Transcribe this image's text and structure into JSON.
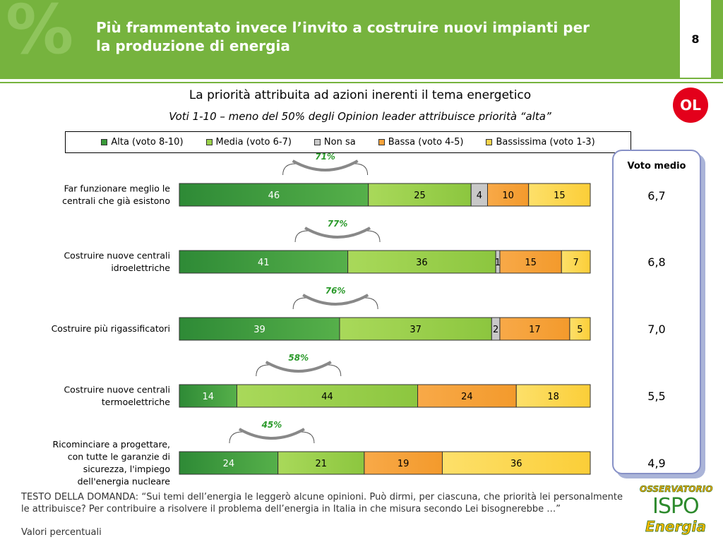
{
  "header": {
    "title_line1": "Più frammentato invece l’invito a costruire nuovi impianti per",
    "title_line2": "la produzione di energia",
    "page_number": "8",
    "percent_glyph": "%"
  },
  "badge": {
    "label": "OL"
  },
  "chart_data": {
    "type": "bar",
    "orientation": "horizontal",
    "stacked": true,
    "title": "La priorità attribuita ad azioni inerenti il tema energetico",
    "subtitle": "Voti 1-10 –  meno del 50% degli Opinion leader attribuisce priorità “alta”",
    "legend_position": "top",
    "categories": [
      [
        "Far funzionare meglio le",
        "centrali che già esistono"
      ],
      [
        "Costruire nuove centrali",
        "idroelettriche"
      ],
      [
        "Costruire più rigassificatori"
      ],
      [
        "Costruire nuove centrali",
        "termoelettriche"
      ],
      [
        "Ricominciare a progettare,",
        "con tutte le garanzie di",
        "sicurezza, l'impiego",
        "dell'energia nucleare"
      ]
    ],
    "series": [
      {
        "name": "Alta (voto 8-10)",
        "color": "#3a9a3a",
        "values": [
          46,
          41,
          39,
          14,
          24
        ]
      },
      {
        "name": "Media (voto 6-7)",
        "color": "#9bd24a",
        "values": [
          25,
          36,
          37,
          44,
          21
        ]
      },
      {
        "name": "Non sa",
        "color": "#c8c8c8",
        "values": [
          4,
          1,
          2,
          null,
          null
        ]
      },
      {
        "name": "Bassa (voto 4-5)",
        "color": "#f7a23a",
        "values": [
          10,
          15,
          17,
          24,
          19
        ]
      },
      {
        "name": "Bassissima (voto 1-3)",
        "color": "#fcd44c",
        "values": [
          15,
          7,
          5,
          18,
          36
        ]
      }
    ],
    "top_box_labels": [
      "71%",
      "77%",
      "76%",
      "58%",
      "45%"
    ],
    "xlim": [
      0,
      100
    ]
  },
  "voto_medio": {
    "title": "Voto medio",
    "values": [
      "6,7",
      "6,8",
      "7,0",
      "5,5",
      "4,9"
    ]
  },
  "footer": {
    "question": "TESTO DELLA DOMANDA: “Sui temi dell’energia le leggerò alcune opinioni. Può dirmi, per ciascuna, che priorità lei personalmente le attribuisce? Per contribuire a risolvere il problema dell’energia in Italia in che misura secondo Lei bisognerebbe …”",
    "units": "Valori percentuali"
  },
  "logo": {
    "top": "OSSERVATORIO",
    "middle": "ISPO",
    "bottom": "Energia"
  }
}
